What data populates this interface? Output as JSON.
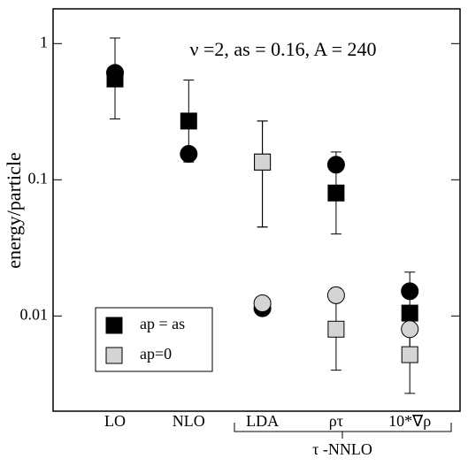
{
  "chart_data": {
    "type": "scatter",
    "annotation": "ν =2, as = 0.16, A = 240",
    "y_label": "energy/particle",
    "group_label": "τ -NNLO",
    "categories": [
      "LO",
      "NLO",
      "LDA",
      "ρτ",
      "10*∇ρ"
    ],
    "log_y": true,
    "ylim": [
      0.002,
      1.8
    ],
    "yticks": [
      0.01,
      0.1,
      1
    ],
    "series": [
      {
        "name": "ap = as",
        "marker": "square",
        "color": "#000000",
        "values": [
          0.55,
          0.27,
          0.135,
          0.08,
          0.0105
        ],
        "err_low": [
          0.28,
          0.135,
          0.045,
          0.04,
          0.0052
        ],
        "err_high": [
          1.1,
          0.54,
          0.27,
          0.16,
          0.021
        ]
      },
      {
        "name": "ap=0",
        "marker": "square",
        "color": "#d4d4d4",
        "values": [
          null,
          null,
          0.135,
          0.008,
          0.0052
        ],
        "err_low": [
          null,
          null,
          0.045,
          0.004,
          0.0027
        ],
        "err_high": [
          null,
          null,
          0.27,
          0.016,
          0.0105
        ]
      },
      {
        "marker": "circle",
        "color": "#000000",
        "values": [
          0.61,
          0.155,
          0.0114,
          0.129,
          0.0152
        ]
      },
      {
        "marker": "circle",
        "color": "#d4d4d4",
        "values": [
          null,
          null,
          0.0124,
          0.0142,
          0.008
        ]
      }
    ]
  }
}
